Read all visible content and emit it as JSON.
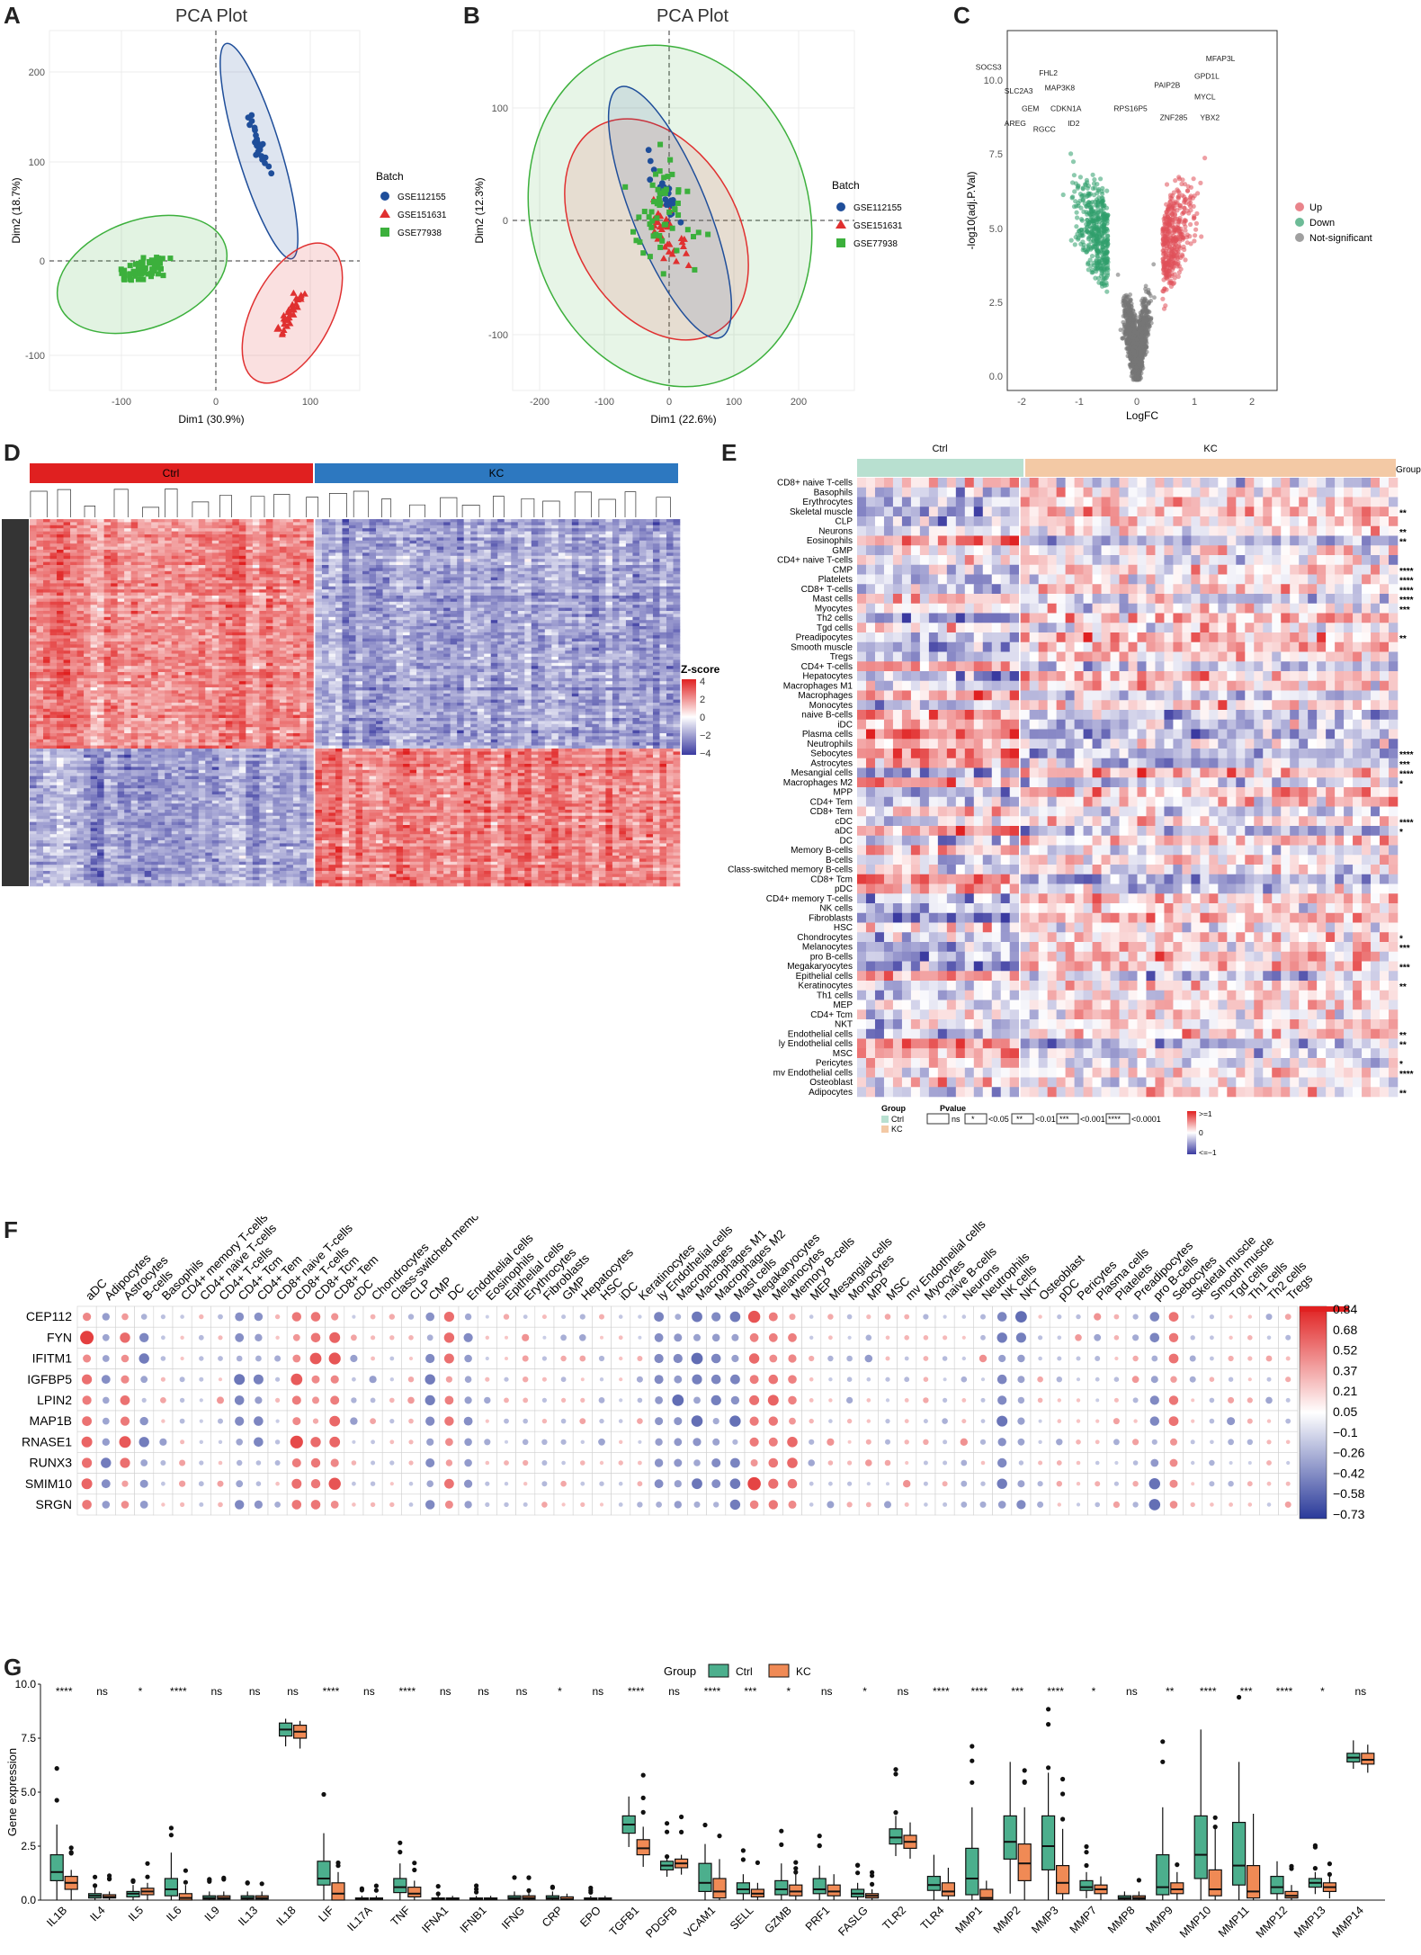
{
  "panels": {
    "A": "A",
    "B": "B",
    "C": "C",
    "D": "D",
    "E": "E",
    "F": "F",
    "G": "G"
  },
  "colors": {
    "batch1": "#1f4e9a",
    "batch2": "#e03030",
    "batch3": "#3cb03c",
    "up": "#e0505a",
    "down": "#2f9e6b",
    "ns": "#777777",
    "ctrl": "#e02020",
    "kc": "#2d78c0",
    "hot": "#e02020",
    "cold": "#3a3aa0",
    "box_ctrl": "#4caf8d",
    "box_kc": "#f08a55"
  },
  "pcaA": {
    "title": "PCA Plot",
    "xlabel": "Dim1 (30.9%)",
    "ylabel": "Dim2 (18.7%)",
    "xticks": [
      "-100",
      "0",
      "100"
    ],
    "yticks": [
      "200",
      "100",
      "0",
      "-100"
    ],
    "legend_title": "Batch",
    "legend": [
      "GSE112155",
      "GSE151631",
      "GSE77938"
    ]
  },
  "pcaB": {
    "title": "PCA Plot",
    "xlabel": "Dim1 (22.6%)",
    "ylabel": "Dim2 (12.3%)",
    "xticks": [
      "-200",
      "-100",
      "0",
      "100",
      "200"
    ],
    "yticks": [
      "100",
      "0",
      "-100"
    ],
    "legend_title": "Batch",
    "legend": [
      "GSE112155",
      "GSE151631",
      "GSE77938"
    ]
  },
  "volcano": {
    "xlabel": "LogFC",
    "ylabel": "-log10(adj.P.Val)",
    "xticks": [
      "-2",
      "-1",
      "0",
      "1",
      "2"
    ],
    "yticks": [
      "10.0",
      "7.5",
      "5.0",
      "2.5",
      "0.0"
    ],
    "legend": [
      "Up",
      "Down",
      "Not-significant"
    ],
    "genes": [
      "SOCS3",
      "FHL2",
      "MAP3K8",
      "SLC2A3",
      "GEM",
      "CDKN1A",
      "AREG",
      "RGCC",
      "ID2",
      "RPS16P5",
      "PAIP2B",
      "MFAP3L",
      "GPD1L",
      "MYCL",
      "ZNF285",
      "YBX2"
    ]
  },
  "heatD": {
    "groups": [
      "Ctrl",
      "KC"
    ],
    "legend_title": "Z-score",
    "legend_ticks": [
      "4",
      "2",
      "0",
      "−2",
      "−4"
    ]
  },
  "heatE": {
    "groups": [
      "Ctrl",
      "KC"
    ],
    "group_label": "Group",
    "rows": [
      "CD8+ naive T-cells",
      "Basophils",
      "Erythrocytes",
      "Skeletal muscle",
      "CLP",
      "Neurons",
      "Eosinophils",
      "GMP",
      "CD4+ naive T-cells",
      "CMP",
      "Platelets",
      "CD8+ T-cells",
      "Mast cells",
      "Myocytes",
      "Th2 cells",
      "Tgd cells",
      "Preadipocytes",
      "Smooth muscle",
      "Tregs",
      "CD4+ T-cells",
      "Hepatocytes",
      "Macrophages M1",
      "Macrophages",
      "Monocytes",
      "naive B-cells",
      "iDC",
      "Plasma cells",
      "Neutrophils",
      "Sebocytes",
      "Astrocytes",
      "Mesangial cells",
      "Macrophages M2",
      "MPP",
      "CD4+ Tem",
      "CD8+ Tem",
      "cDC",
      "aDC",
      "DC",
      "Memory B-cells",
      "B-cells",
      "Class-switched memory B-cells",
      "CD8+ Tcm",
      "pDC",
      "CD4+ memory T-cells",
      "NK cells",
      "Fibroblasts",
      "HSC",
      "Chondrocytes",
      "Melanocytes",
      "pro B-cells",
      "Megakaryocytes",
      "Epithelial cells",
      "Keratinocytes",
      "Th1 cells",
      "MEP",
      "CD4+ Tcm",
      "NKT",
      "Endothelial cells",
      "ly Endothelial cells",
      "MSC",
      "Pericytes",
      "mv Endothelial cells",
      "Osteoblast",
      "Adipocytes"
    ],
    "sig": [
      "",
      "",
      "",
      "**",
      "",
      "**",
      "**",
      "",
      "",
      "****",
      "****",
      "****",
      "****",
      "***",
      "",
      "",
      "**",
      "",
      "",
      "",
      "",
      "",
      "",
      "",
      "",
      "",
      "",
      "",
      "****",
      "***",
      "****",
      "*",
      "",
      "",
      "",
      "****",
      "*",
      "",
      "",
      "",
      "",
      "",
      "",
      "",
      "",
      "",
      "",
      "*",
      "***",
      "",
      "***",
      "",
      "**",
      "",
      "",
      "",
      "",
      "**",
      "**",
      "",
      "*",
      "****",
      "",
      "**"
    ],
    "legend_group_title": "Group",
    "legend_group": [
      "Ctrl",
      "KC"
    ],
    "legend_p_title": "Pvalue",
    "legend_p": [
      "ns",
      "*",
      "<0.05",
      "**",
      "<0.01",
      "***",
      "<0.001",
      "****",
      "<0.0001"
    ],
    "scale": [
      ">=1",
      "0",
      "<=−1"
    ]
  },
  "corrF": {
    "rows": [
      "CEP112",
      "FYN",
      "IFITM1",
      "IGFBP5",
      "LPIN2",
      "MAP1B",
      "RNASE1",
      "RUNX3",
      "SMIM10",
      "SRGN"
    ],
    "cols": [
      "aDC",
      "Adipocytes",
      "Astrocytes",
      "B-cells",
      "Basophils",
      "CD4+ memory T-cells",
      "CD4+ naive T-cells",
      "CD4+ T-cells",
      "CD4+ Tcm",
      "CD4+ Tem",
      "CD8+ naive T-cells",
      "CD8+ T-cells",
      "CD8+ Tcm",
      "CD8+ Tem",
      "cDC",
      "Chondrocytes",
      "Class-switched memory B-cells",
      "CLP",
      "CMP",
      "DC",
      "Endothelial cells",
      "Eosinophils",
      "Epithelial cells",
      "Erythrocytes",
      "Fibroblasts",
      "GMP",
      "Hepatocytes",
      "HSC",
      "iDC",
      "Keratinocytes",
      "ly Endothelial cells",
      "Macrophages",
      "Macrophages M1",
      "Macrophages M2",
      "Mast cells",
      "Megakaryocytes",
      "Melanocytes",
      "Memory B-cells",
      "MEP",
      "Mesangial cells",
      "Monocytes",
      "MPP",
      "MSC",
      "mv Endothelial cells",
      "Myocytes",
      "naive B-cells",
      "Neurons",
      "Neutrophils",
      "NK cells",
      "NKT",
      "Osteoblast",
      "pDC",
      "Pericytes",
      "Plasma cells",
      "Platelets",
      "Preadipocytes",
      "pro B-cells",
      "Sebocytes",
      "Skeletal muscle",
      "Smooth muscle",
      "Tgd cells",
      "Th1 cells",
      "Th2 cells",
      "Tregs"
    ],
    "scale": [
      "0.84",
      "0.68",
      "0.52",
      "0.37",
      "0.21",
      "0.05",
      "−0.1",
      "−0.26",
      "−0.42",
      "−0.58",
      "−0.73"
    ]
  },
  "chart_data": {
    "type": "box",
    "title": "",
    "legend_title": "Group",
    "series_names": [
      "Ctrl",
      "KC"
    ],
    "xlabel": "",
    "ylabel": "Gene expression",
    "ylim": [
      0,
      10
    ],
    "yticks": [
      "0.0",
      "2.5",
      "5.0",
      "7.5",
      "10.0"
    ],
    "categories": [
      "IL1B",
      "IL4",
      "IL5",
      "IL6",
      "IL9",
      "IL13",
      "IL18",
      "LIF",
      "IL17A",
      "TNF",
      "IFNA1",
      "IFNB1",
      "IFNG",
      "CRP",
      "EPO",
      "TGFB1",
      "PDGFB",
      "VCAM1",
      "SELL",
      "GZMB",
      "PRF1",
      "FASLG",
      "TLR2",
      "TLR4",
      "MMP1",
      "MMP2",
      "MMP3",
      "MMP7",
      "MMP8",
      "MMP9",
      "MMP10",
      "MMP11",
      "MMP12",
      "MMP13",
      "MMP14"
    ],
    "significance": [
      "****",
      "ns",
      "*",
      "****",
      "ns",
      "ns",
      "ns",
      "****",
      "ns",
      "****",
      "ns",
      "ns",
      "ns",
      "*",
      "ns",
      "****",
      "ns",
      "****",
      "***",
      "*",
      "ns",
      "*",
      "ns",
      "****",
      "****",
      "***",
      "****",
      "*",
      "ns",
      "**",
      "****",
      "***",
      "****",
      "*",
      "ns"
    ],
    "ctrl_median": [
      1.3,
      0.2,
      0.3,
      0.5,
      0.1,
      0.1,
      7.9,
      1.0,
      0.05,
      0.6,
      0.05,
      0.05,
      0.1,
      0.1,
      0.05,
      3.5,
      1.6,
      0.8,
      0.5,
      0.5,
      0.5,
      0.3,
      2.9,
      0.7,
      1.0,
      2.7,
      2.5,
      0.6,
      0.1,
      0.6,
      2.1,
      1.6,
      0.6,
      0.8,
      6.6
    ],
    "ctrl_q1": [
      0.9,
      0.1,
      0.15,
      0.2,
      0.05,
      0.05,
      7.6,
      0.7,
      0.02,
      0.35,
      0.02,
      0.02,
      0.05,
      0.05,
      0.02,
      3.1,
      1.4,
      0.4,
      0.3,
      0.25,
      0.3,
      0.15,
      2.6,
      0.45,
      0.25,
      1.9,
      1.4,
      0.45,
      0.05,
      0.25,
      1.0,
      0.7,
      0.3,
      0.6,
      6.4
    ],
    "ctrl_q3": [
      2.1,
      0.3,
      0.4,
      1.0,
      0.2,
      0.2,
      8.2,
      1.8,
      0.1,
      1.0,
      0.1,
      0.1,
      0.2,
      0.2,
      0.1,
      3.9,
      1.8,
      1.7,
      0.8,
      0.9,
      1.0,
      0.5,
      3.3,
      1.1,
      2.4,
      3.9,
      3.9,
      0.9,
      0.2,
      2.1,
      3.9,
      3.6,
      1.1,
      1.0,
      6.8
    ],
    "kc_median": [
      0.8,
      0.15,
      0.4,
      0.1,
      0.1,
      0.1,
      7.8,
      0.3,
      0.05,
      0.3,
      0.05,
      0.05,
      0.1,
      0.05,
      0.05,
      2.4,
      1.7,
      0.4,
      0.3,
      0.4,
      0.4,
      0.2,
      2.7,
      0.4,
      0.1,
      1.7,
      0.8,
      0.5,
      0.1,
      0.5,
      0.5,
      0.4,
      0.2,
      0.6,
      6.5
    ],
    "kc_q1": [
      0.5,
      0.1,
      0.25,
      0.0,
      0.05,
      0.05,
      7.5,
      0.0,
      0.02,
      0.15,
      0.02,
      0.02,
      0.05,
      0.02,
      0.02,
      2.1,
      1.5,
      0.1,
      0.15,
      0.2,
      0.2,
      0.1,
      2.4,
      0.2,
      0.02,
      0.9,
      0.3,
      0.3,
      0.05,
      0.3,
      0.2,
      0.1,
      0.1,
      0.4,
      6.3
    ],
    "kc_q3": [
      1.1,
      0.25,
      0.55,
      0.3,
      0.2,
      0.2,
      8.1,
      0.8,
      0.1,
      0.6,
      0.1,
      0.1,
      0.2,
      0.15,
      0.1,
      2.8,
      1.9,
      1.0,
      0.5,
      0.7,
      0.7,
      0.3,
      3.0,
      0.8,
      0.5,
      2.6,
      1.6,
      0.7,
      0.2,
      0.8,
      1.4,
      1.6,
      0.4,
      0.8,
      6.8
    ],
    "ctrl_max": [
      3.5,
      0.6,
      0.7,
      2.2,
      0.4,
      0.4,
      8.4,
      3.1,
      0.2,
      1.7,
      0.2,
      0.2,
      0.4,
      0.4,
      0.2,
      4.8,
      2.0,
      2.6,
      1.2,
      1.7,
      1.6,
      0.8,
      3.9,
      2.1,
      4.3,
      6.4,
      5.9,
      1.3,
      0.4,
      4.3,
      7.9,
      6.4,
      1.8,
      1.3,
      7.4
    ],
    "kc_max": [
      1.4,
      0.4,
      0.8,
      0.7,
      0.4,
      0.4,
      8.3,
      1.3,
      0.2,
      0.9,
      0.2,
      0.2,
      0.4,
      0.3,
      0.2,
      3.4,
      2.1,
      1.9,
      0.8,
      1.2,
      1.2,
      0.5,
      3.6,
      1.5,
      0.9,
      4.3,
      3.3,
      1.1,
      0.4,
      1.3,
      3.3,
      4.0,
      0.7,
      1.1,
      7.2
    ]
  }
}
